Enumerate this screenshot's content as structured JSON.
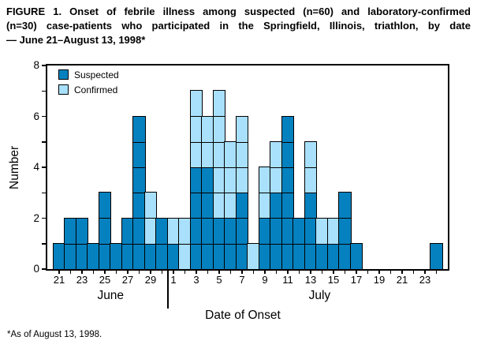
{
  "figure": {
    "title_lines": [
      "FIGURE 1. Onset of febrile illness among suspected (n=60) and laboratory-confirmed",
      "(n=30) case-patients who participated in the Springfield, Illinois, triathlon, by date",
      "— June 21–August 13, 1998*"
    ],
    "footnote": "*As of August 13, 1998."
  },
  "legend": {
    "items": [
      {
        "label": "Suspected",
        "color": "#0681bf"
      },
      {
        "label": "Confirmed",
        "color": "#a9e0fb"
      }
    ]
  },
  "chart_data": {
    "type": "bar",
    "stacked": true,
    "title": "FIGURE 1. Onset of febrile illness among suspected (n=60) and laboratory-confirmed (n=30) case-patients who participated in the Springfield, Illinois, triathlon, by date — June 21–August 13, 1998*",
    "xlabel": "Date of Onset",
    "ylabel": "Number",
    "ylim": [
      0,
      8
    ],
    "yticks_labeled": [
      0,
      2,
      4,
      6,
      8
    ],
    "grid": false,
    "legend_position": "top-left-inside",
    "note": "each box = 1 case-patient; Suspected stacked below Confirmed",
    "months": [
      {
        "name": "June",
        "start_index": 0,
        "num_days": 10
      },
      {
        "name": "July",
        "start_index": 10,
        "num_days": 24
      }
    ],
    "categories": [
      "Jun 21",
      "Jun 22",
      "Jun 23",
      "Jun 24",
      "Jun 25",
      "Jun 26",
      "Jun 27",
      "Jun 28",
      "Jun 29",
      "Jun 30",
      "Jul 1",
      "Jul 2",
      "Jul 3",
      "Jul 4",
      "Jul 5",
      "Jul 6",
      "Jul 7",
      "Jul 8",
      "Jul 9",
      "Jul 10",
      "Jul 11",
      "Jul 12",
      "Jul 13",
      "Jul 14",
      "Jul 15",
      "Jul 16",
      "Jul 17",
      "Jul 18",
      "Jul 19",
      "Jul 20",
      "Jul 21",
      "Jul 22",
      "Jul 23",
      "Jul 24"
    ],
    "day_numbers": [
      21,
      22,
      23,
      24,
      25,
      26,
      27,
      28,
      29,
      30,
      1,
      2,
      3,
      4,
      5,
      6,
      7,
      8,
      9,
      10,
      11,
      12,
      13,
      14,
      15,
      16,
      17,
      18,
      19,
      20,
      21,
      22,
      23,
      24
    ],
    "series": [
      {
        "name": "Suspected",
        "color": "#0681bf",
        "values": [
          1,
          2,
          2,
          1,
          3,
          1,
          2,
          6,
          1,
          2,
          1,
          0,
          4,
          4,
          2,
          2,
          3,
          0,
          2,
          3,
          6,
          2,
          3,
          1,
          1,
          3,
          1,
          0,
          0,
          0,
          0,
          0,
          0,
          1
        ]
      },
      {
        "name": "Confirmed",
        "color": "#a9e0fb",
        "values": [
          0,
          0,
          0,
          0,
          0,
          0,
          0,
          0,
          2,
          0,
          1,
          2,
          3,
          2,
          5,
          3,
          3,
          1,
          2,
          2,
          0,
          0,
          2,
          1,
          1,
          0,
          0,
          0,
          0,
          0,
          0,
          0,
          0,
          0
        ]
      }
    ],
    "totals": {
      "Suspected": 60,
      "Confirmed": 30
    }
  }
}
